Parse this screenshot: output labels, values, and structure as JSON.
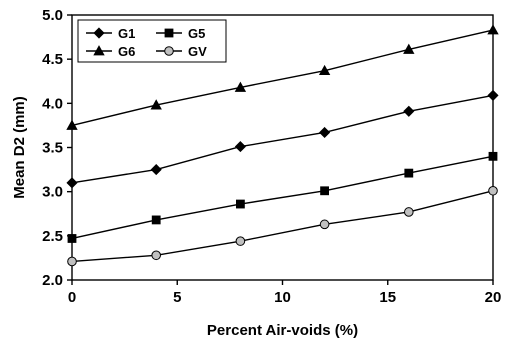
{
  "chart_data": {
    "type": "line",
    "title": "",
    "xlabel": "Percent Air-voids (%)",
    "ylabel": "Mean D2 (mm)",
    "x": [
      0,
      4,
      8,
      12,
      16,
      20
    ],
    "xlim": [
      0,
      20
    ],
    "ylim": [
      2.0,
      5.0
    ],
    "xticks": [
      0,
      5,
      10,
      15,
      20
    ],
    "yticks": [
      2.0,
      2.5,
      3.0,
      3.5,
      4.0,
      4.5,
      5.0
    ],
    "xtick_labels": [
      "0",
      "5",
      "10",
      "15",
      "20"
    ],
    "ytick_labels": [
      "2.0",
      "2.5",
      "3.0",
      "3.5",
      "4.0",
      "4.5",
      "5.0"
    ],
    "grid": false,
    "legend_position": "top-left",
    "series": [
      {
        "name": "G1",
        "marker": "diamond",
        "fill": "#000000",
        "values": [
          3.1,
          3.25,
          3.51,
          3.67,
          3.91,
          4.09
        ]
      },
      {
        "name": "G5",
        "marker": "square",
        "fill": "#000000",
        "values": [
          2.47,
          2.68,
          2.86,
          3.01,
          3.21,
          3.4
        ]
      },
      {
        "name": "G6",
        "marker": "triangle",
        "fill": "#000000",
        "values": [
          3.75,
          3.98,
          4.18,
          4.37,
          4.61,
          4.83
        ]
      },
      {
        "name": "GV",
        "marker": "circle",
        "fill": "#c0c0c0",
        "values": [
          2.21,
          2.28,
          2.44,
          2.63,
          2.77,
          3.01
        ]
      }
    ]
  }
}
